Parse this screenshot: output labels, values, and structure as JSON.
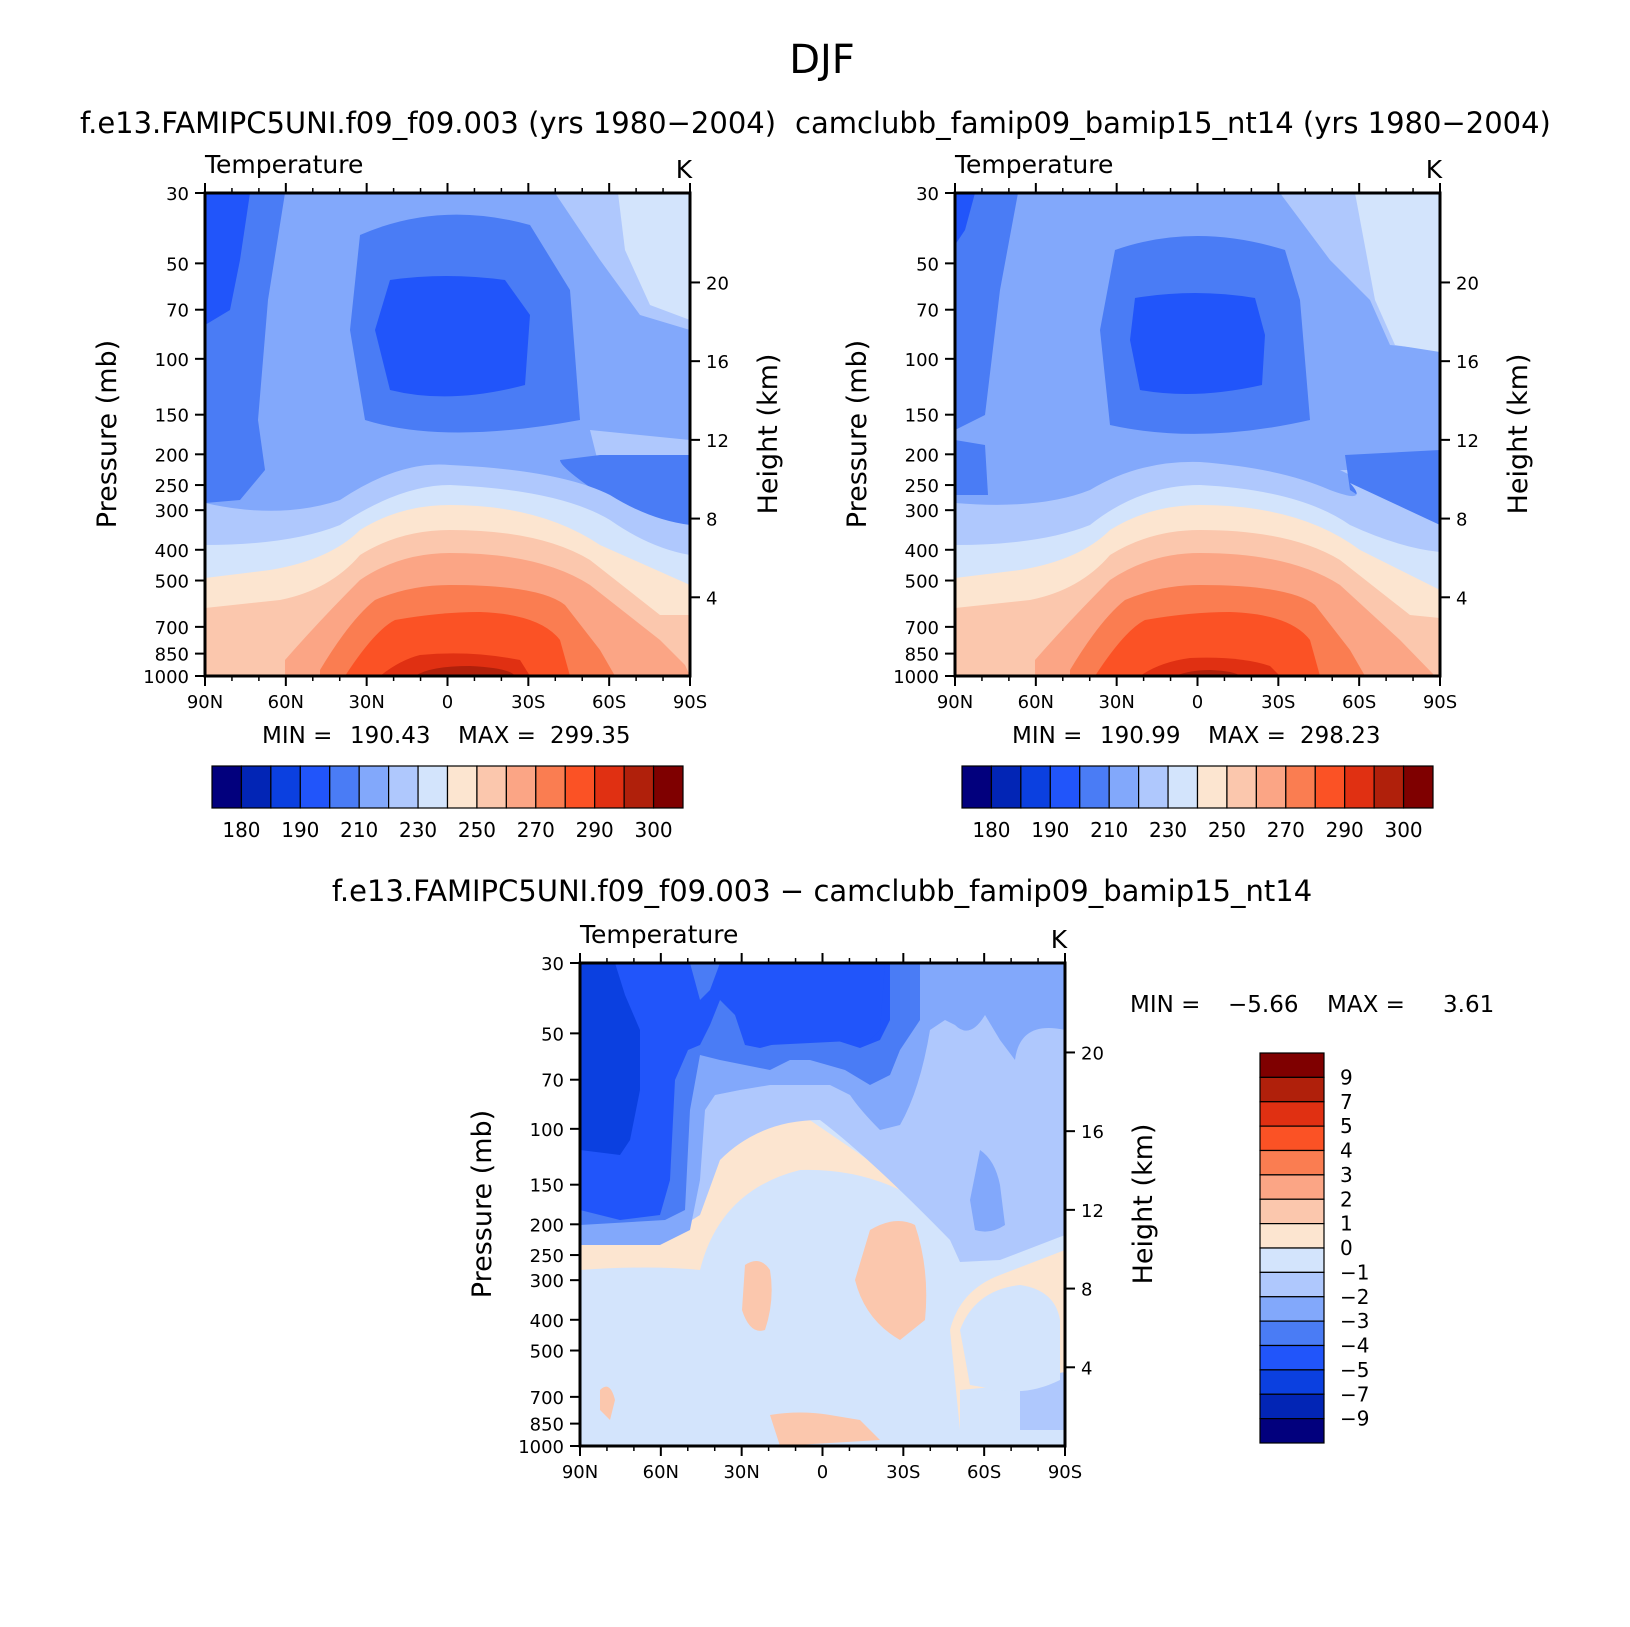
{
  "chart_data": {
    "type": "contour",
    "suptitle": "DJF",
    "vertical_axis": {
      "pressure_levels": [
        30,
        50,
        70,
        100,
        150,
        200,
        250,
        300,
        400,
        500,
        700,
        850,
        1000
      ],
      "pressure_labels": [
        "30",
        "50",
        "70",
        "100",
        "150",
        "200",
        "250",
        "300",
        "400",
        "500",
        "700",
        "850",
        "1000"
      ],
      "height_ticks_km": [
        4,
        8,
        12,
        16,
        20
      ],
      "height_labels": [
        "4",
        "8",
        "12",
        "16",
        "20"
      ],
      "left_label": "Pressure (mb)",
      "right_label": "Height (km)"
    },
    "latitude_axis": {
      "ticks": [
        "90N",
        "60N",
        "30N",
        "0",
        "30S",
        "60S",
        "90S"
      ],
      "lat_values": [
        90,
        60,
        30,
        0,
        -30,
        -60,
        -90
      ]
    },
    "panels": [
      {
        "id": "model1",
        "title": "f.e13.FAMIPC5UNI.f09_f09.003 (yrs 1980−2004)",
        "variable": "Temperature",
        "units": "K",
        "min_label": "MIN =",
        "min_value": "190.43",
        "max_label": "MAX =",
        "max_value": "299.35",
        "colorbar": {
          "orientation": "horizontal",
          "colors": [
            "#02007d",
            "#0225b5",
            "#0b40e0",
            "#2155fa",
            "#4a7cf5",
            "#82a8fb",
            "#afc8fd",
            "#d3e4fc",
            "#fce5d0",
            "#fbc7ad",
            "#fba585",
            "#fa7d51",
            "#fb5225",
            "#e03012",
            "#b0200b",
            "#7f0000"
          ],
          "labels": [
            "180",
            "190",
            "210",
            "230",
            "250",
            "270",
            "290",
            "300"
          ]
        }
      },
      {
        "id": "model2",
        "title": "camclubb_famip09_bamip15_nt14 (yrs 1980−2004)",
        "variable": "Temperature",
        "units": "K",
        "min_label": "MIN =",
        "min_value": "190.99",
        "max_label": "MAX =",
        "max_value": "298.23",
        "colorbar": {
          "orientation": "horizontal",
          "colors": [
            "#02007d",
            "#0225b5",
            "#0b40e0",
            "#2155fa",
            "#4a7cf5",
            "#82a8fb",
            "#afc8fd",
            "#d3e4fc",
            "#fce5d0",
            "#fbc7ad",
            "#fba585",
            "#fa7d51",
            "#fb5225",
            "#e03012",
            "#b0200b",
            "#7f0000"
          ],
          "labels": [
            "180",
            "190",
            "210",
            "230",
            "250",
            "270",
            "290",
            "300"
          ]
        }
      },
      {
        "id": "diff",
        "title": "f.e13.FAMIPC5UNI.f09_f09.003 − camclubb_famip09_bamip15_nt14",
        "variable": "Temperature",
        "units": "K",
        "min_label": "MIN =",
        "min_value": "−5.66",
        "max_label": "MAX =",
        "max_value": "3.61",
        "colorbar": {
          "orientation": "vertical",
          "colors_top_to_bottom": [
            "#7f0000",
            "#b0200b",
            "#e03012",
            "#fb5225",
            "#fa7d51",
            "#fba585",
            "#fbc7ad",
            "#fce5d0",
            "#d3e4fc",
            "#afc8fd",
            "#82a8fb",
            "#4a7cf5",
            "#2155fa",
            "#0b40e0",
            "#0225b5",
            "#02007d"
          ],
          "labels_top_to_bottom": [
            "9",
            "7",
            "5",
            "4",
            "3",
            "2",
            "1",
            "0",
            "−1",
            "−2",
            "−3",
            "−4",
            "−5",
            "−7",
            "−9"
          ]
        }
      }
    ]
  }
}
